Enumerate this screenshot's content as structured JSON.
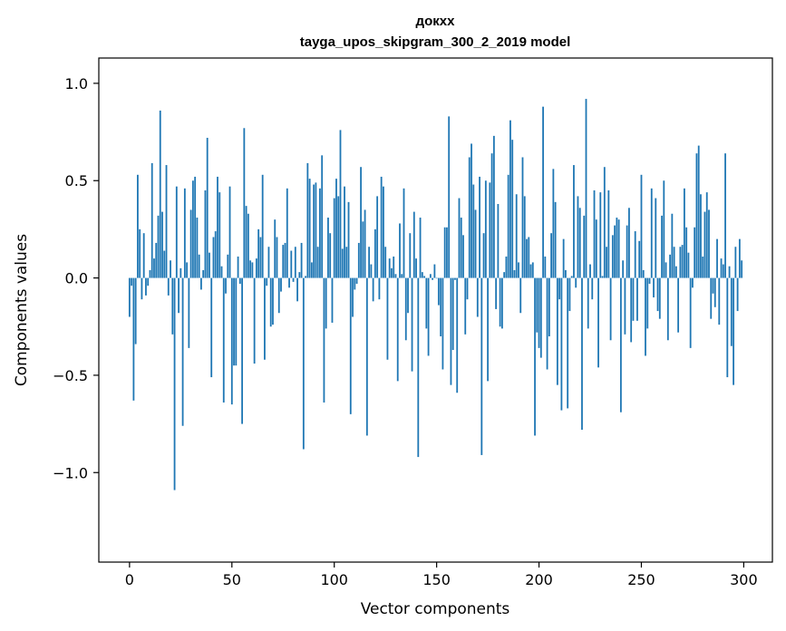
{
  "chart_data": {
    "type": "bar",
    "title": "докхх",
    "subtitle": "tayga_upos_skipgram_300_2_2019 model",
    "xlabel": "Vector components",
    "ylabel": "Components values",
    "xlim": [
      -15,
      314
    ],
    "ylim": [
      -1.46,
      1.13
    ],
    "x_ticks": [
      0,
      50,
      100,
      150,
      200,
      250,
      300
    ],
    "y_ticks": [
      1.0,
      0.5,
      0.0,
      -0.5,
      -1.0
    ],
    "y_tick_labels": [
      "1.0",
      "0.5",
      "0.0",
      "−0.5",
      "−1.0"
    ],
    "bar_color": "#1f77b4",
    "values": [
      -0.2,
      -0.04,
      -0.63,
      -0.34,
      0.53,
      0.25,
      -0.11,
      0.23,
      -0.09,
      -0.04,
      0.04,
      0.59,
      0.1,
      0.18,
      0.32,
      0.86,
      0.34,
      0.14,
      0.58,
      -0.09,
      0.09,
      -0.29,
      -1.09,
      0.47,
      -0.18,
      0.05,
      -0.76,
      0.46,
      0.08,
      -0.36,
      0.35,
      0.5,
      0.52,
      0.31,
      0.12,
      -0.06,
      0.04,
      0.45,
      0.72,
      0.13,
      -0.51,
      0.21,
      0.24,
      0.52,
      0.44,
      0.06,
      -0.64,
      -0.08,
      0.12,
      0.47,
      -0.65,
      -0.45,
      -0.45,
      0.11,
      -0.03,
      -0.75,
      0.77,
      0.37,
      0.33,
      0.09,
      0.08,
      -0.44,
      0.1,
      0.25,
      0.21,
      0.53,
      -0.42,
      -0.04,
      0.16,
      -0.25,
      -0.24,
      0.3,
      0.21,
      -0.18,
      -0.07,
      0.17,
      0.18,
      0.46,
      -0.05,
      0.14,
      -0.02,
      0.16,
      -0.12,
      0.03,
      0.18,
      -0.88,
      0.01,
      0.59,
      0.51,
      0.08,
      0.48,
      0.49,
      0.16,
      0.46,
      0.63,
      -0.64,
      -0.26,
      0.31,
      0.23,
      -0.23,
      0.41,
      0.51,
      0.42,
      0.76,
      0.15,
      0.47,
      0.16,
      0.39,
      -0.7,
      -0.2,
      -0.06,
      -0.03,
      0.18,
      0.57,
      0.29,
      0.35,
      -0.81,
      0.16,
      0.07,
      -0.12,
      0.25,
      0.42,
      -0.11,
      0.52,
      0.47,
      0.16,
      -0.42,
      0.1,
      0.05,
      0.11,
      0.02,
      -0.53,
      0.28,
      0.02,
      0.46,
      -0.32,
      -0.18,
      0.23,
      -0.48,
      0.34,
      0.1,
      -0.92,
      0.31,
      0.03,
      0.01,
      -0.26,
      -0.4,
      0.02,
      -0.01,
      0.07,
      0.0,
      -0.14,
      -0.3,
      -0.47,
      0.26,
      0.26,
      0.83,
      -0.55,
      -0.37,
      -0.01,
      -0.59,
      0.41,
      0.31,
      0.22,
      -0.29,
      -0.11,
      0.62,
      0.69,
      0.48,
      0.35,
      -0.2,
      0.52,
      -0.91,
      0.23,
      0.5,
      -0.53,
      0.49,
      0.64,
      0.73,
      -0.16,
      0.38,
      -0.25,
      -0.26,
      0.03,
      0.11,
      0.53,
      0.81,
      0.71,
      0.04,
      0.43,
      0.08,
      -0.18,
      0.62,
      0.42,
      0.2,
      0.21,
      0.07,
      0.08,
      -0.81,
      -0.28,
      -0.36,
      -0.41,
      0.88,
      0.11,
      -0.47,
      -0.3,
      0.23,
      0.56,
      0.39,
      -0.55,
      -0.11,
      -0.68,
      0.2,
      0.04,
      -0.67,
      -0.17,
      0.01,
      0.58,
      -0.05,
      0.42,
      0.36,
      -0.78,
      0.32,
      0.92,
      -0.26,
      0.07,
      -0.11,
      0.45,
      0.3,
      -0.46,
      0.44,
      0.01,
      0.57,
      0.16,
      0.45,
      -0.32,
      0.22,
      0.27,
      0.31,
      0.3,
      -0.69,
      0.09,
      -0.29,
      0.27,
      0.36,
      -0.33,
      -0.22,
      0.24,
      -0.22,
      0.19,
      0.53,
      0.04,
      -0.4,
      -0.26,
      -0.03,
      0.46,
      -0.1,
      0.41,
      -0.17,
      -0.21,
      0.32,
      0.5,
      0.08,
      -0.32,
      0.12,
      0.33,
      0.16,
      0.06,
      -0.28,
      0.16,
      0.17,
      0.46,
      0.26,
      0.13,
      -0.36,
      -0.05,
      0.26,
      0.64,
      0.68,
      0.43,
      0.11,
      0.34,
      0.44,
      0.35,
      -0.21,
      -0.08,
      -0.15,
      0.2,
      -0.24,
      0.1,
      0.07,
      0.64,
      -0.51,
      0.06,
      -0.35,
      -0.55,
      0.16,
      -0.17,
      0.2,
      0.09
    ]
  }
}
